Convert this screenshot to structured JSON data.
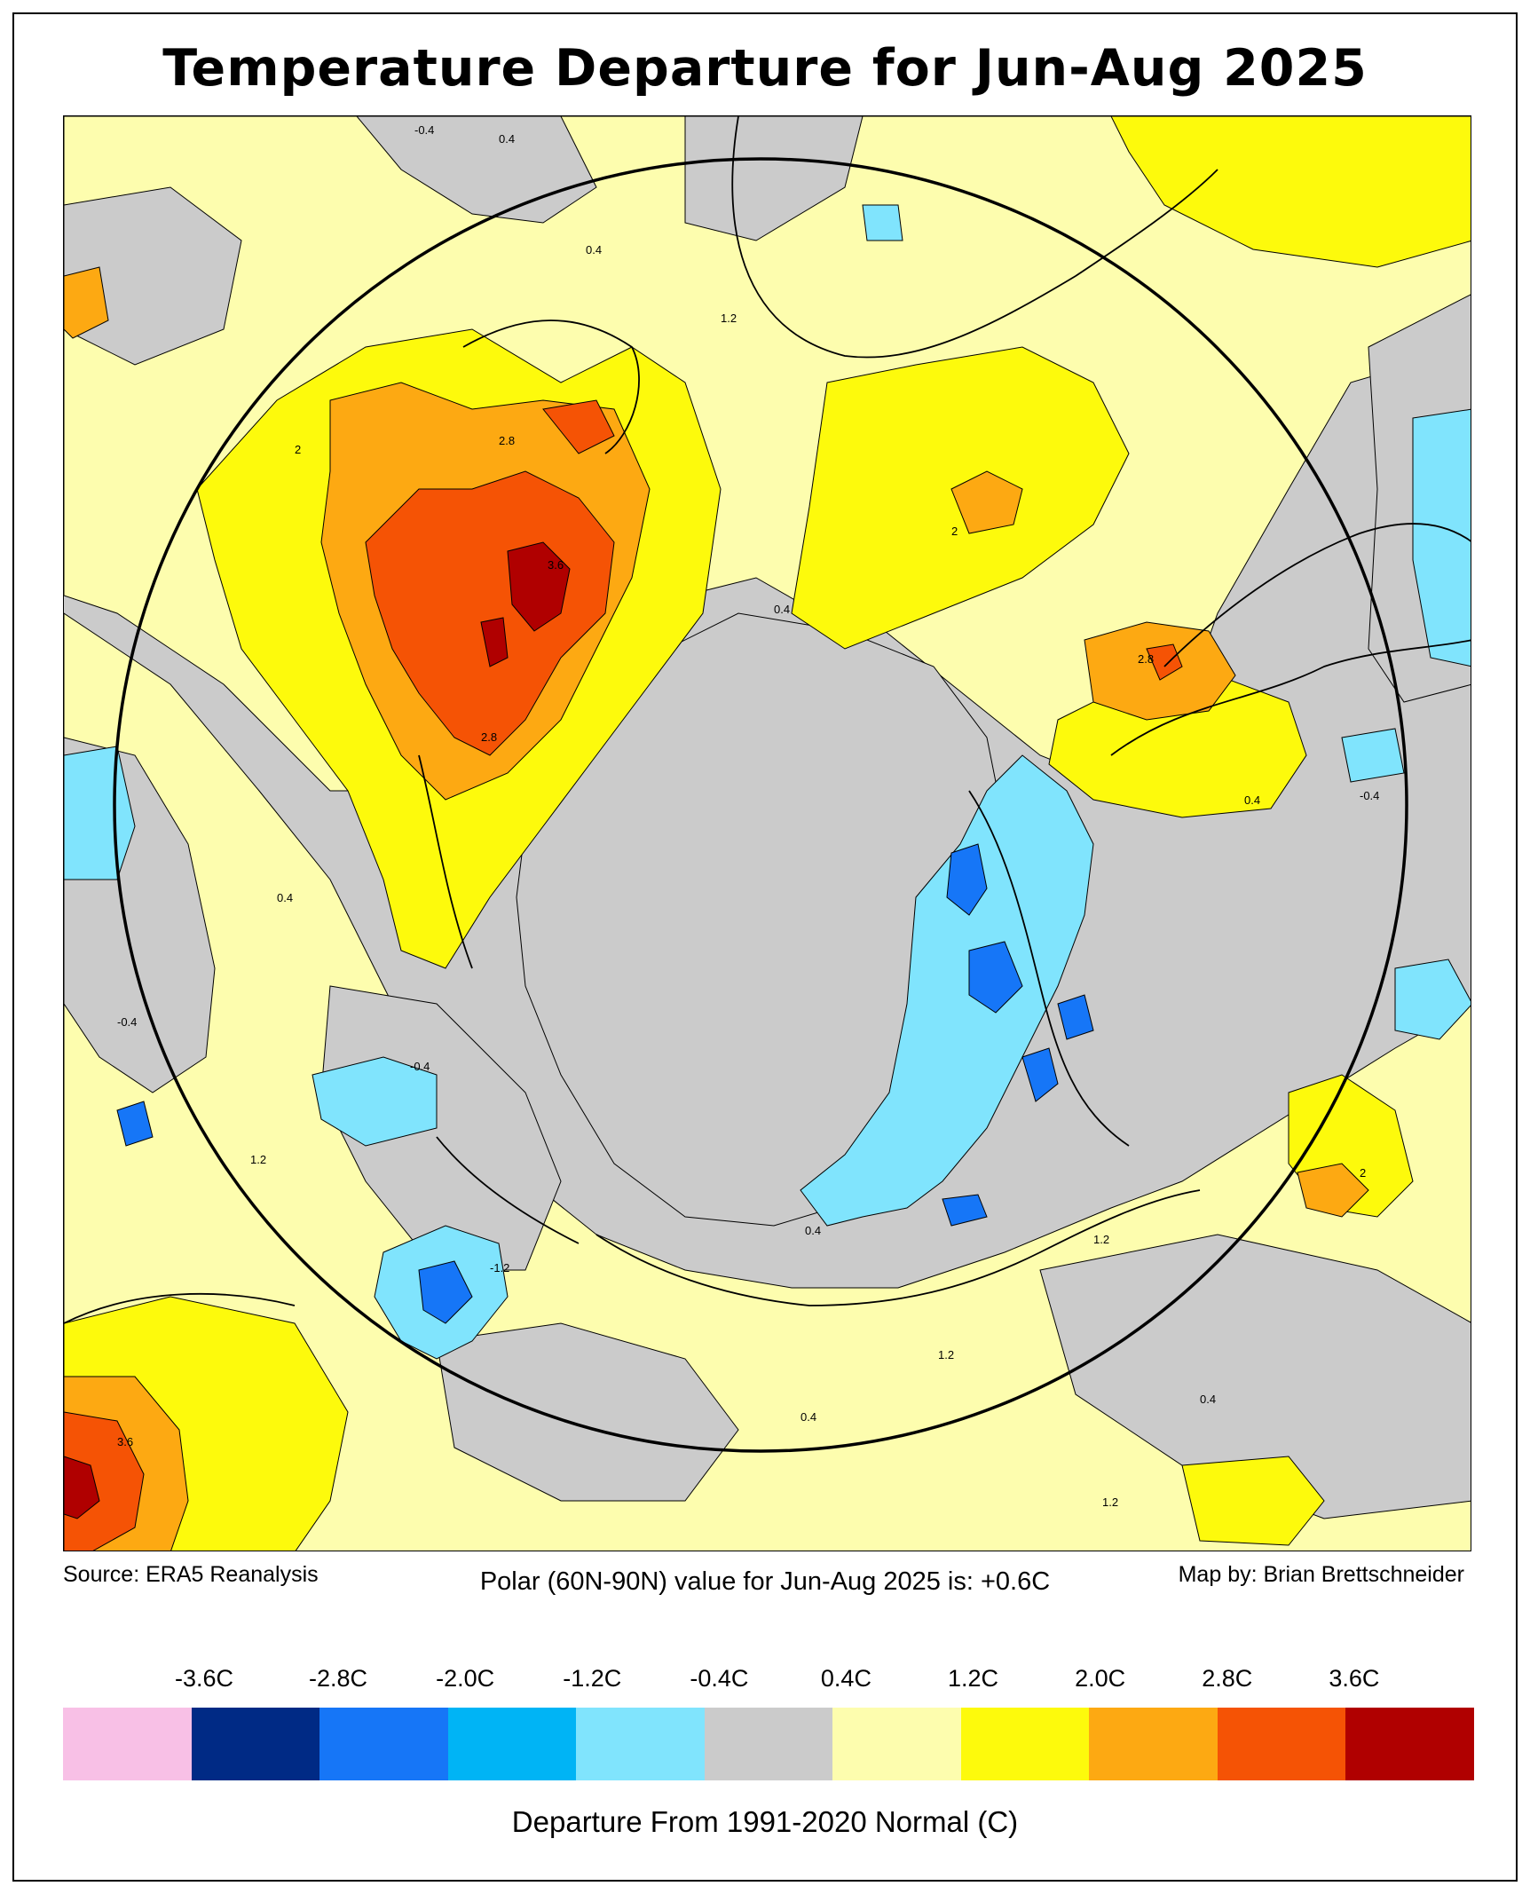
{
  "title": "Temperature Departure for Jun-Aug 2025",
  "footer": {
    "source": "Source: ERA5 Reanalysis",
    "polar_value": "Polar (60N-90N) value for Jun-Aug 2025 is: +0.6C",
    "credit": "Map by: Brian Brettschneider"
  },
  "legend": {
    "thresholds": [
      "-3.6C",
      "-2.8C",
      "-2.0C",
      "-1.2C",
      "-0.4C",
      "0.4C",
      "1.2C",
      "2.0C",
      "2.8C",
      "3.6C"
    ],
    "colors": [
      "#f8c0e6",
      "#002a85",
      "#1676f7",
      "#00b4f5",
      "#80e4fd",
      "#cbcbcb",
      "#fdfdae",
      "#fdfa0c",
      "#fda912",
      "#f55305",
      "#b00000"
    ],
    "title": "Departure From 1991-2020 Normal (C)"
  },
  "contour_labels": [
    "0.4",
    "1.2",
    "2",
    "2.8",
    "3.6",
    "-0.4",
    "-1.2"
  ]
}
